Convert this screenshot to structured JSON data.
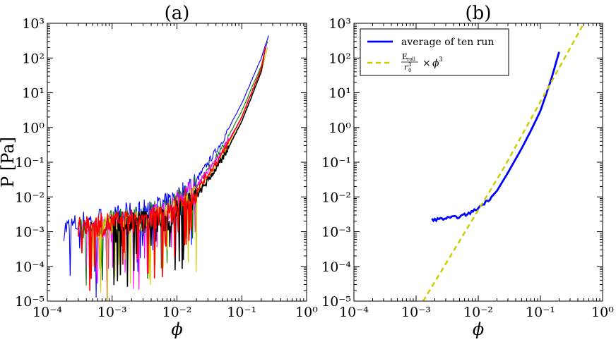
{
  "chart_data": [
    {
      "type": "line",
      "title": "(a)",
      "xlabel": "ϕ",
      "ylabel": "P [Pa]",
      "x_scale": "log",
      "y_scale": "log",
      "xlim": [
        0.0001,
        1
      ],
      "ylim": [
        1e-05,
        1000
      ],
      "x_tick_labels": [
        "10⁻⁴",
        "10⁻³",
        "10⁻²",
        "10⁻¹",
        "10⁰"
      ],
      "y_tick_labels": [
        "10⁻⁵",
        "10⁻⁴",
        "10⁻³",
        "10⁻²",
        "10⁻¹",
        "10⁰",
        "10¹",
        "10²",
        "10³"
      ],
      "grid": false,
      "series": [
        {
          "color": "#0000ff",
          "x": [
            0.00018,
            0.0004,
            0.001,
            0.003,
            0.007,
            0.01,
            0.02,
            0.05,
            0.1,
            0.2,
            0.26
          ],
          "y": [
            0.0012,
            0.002,
            0.0025,
            0.004,
            0.006,
            0.01,
            0.03,
            0.4,
            5,
            100,
            450
          ]
        },
        {
          "color": "#008000",
          "x": [
            0.0003,
            0.001,
            0.003,
            0.007,
            0.01,
            0.02,
            0.05,
            0.1,
            0.2,
            0.25
          ],
          "y": [
            0.001,
            0.002,
            0.0025,
            0.005,
            0.008,
            0.02,
            0.25,
            3,
            60,
            300
          ]
        },
        {
          "color": "#ff00ff",
          "x": [
            0.0004,
            0.001,
            0.003,
            0.007,
            0.01,
            0.02,
            0.05,
            0.1,
            0.2,
            0.24
          ],
          "y": [
            0.001,
            0.0015,
            0.002,
            0.004,
            0.007,
            0.02,
            0.2,
            2,
            50,
            250
          ]
        },
        {
          "color": "#cccc00",
          "x": [
            0.0005,
            0.001,
            0.003,
            0.007,
            0.01,
            0.02,
            0.05,
            0.1,
            0.2,
            0.25
          ],
          "y": [
            0.001,
            0.0015,
            0.002,
            0.003,
            0.005,
            0.012,
            0.15,
            1.5,
            40,
            200
          ]
        },
        {
          "color": "#000000",
          "x": [
            0.001,
            0.003,
            0.007,
            0.01,
            0.02,
            0.05,
            0.1,
            0.2,
            0.23
          ],
          "y": [
            0.0015,
            0.002,
            0.002,
            0.004,
            0.01,
            0.12,
            1.5,
            40,
            200
          ]
        },
        {
          "color": "#ff0000",
          "x": [
            0.0003,
            0.001,
            0.003,
            0.007,
            0.01,
            0.02,
            0.05,
            0.1,
            0.2,
            0.23
          ],
          "y": [
            0.0012,
            0.0018,
            0.0022,
            0.003,
            0.005,
            0.015,
            0.17,
            2,
            50,
            200
          ]
        }
      ]
    },
    {
      "type": "line",
      "title": "(b)",
      "xlabel": "ϕ",
      "ylabel": "",
      "x_scale": "log",
      "y_scale": "log",
      "xlim": [
        0.0001,
        1
      ],
      "ylim": [
        1e-05,
        1000
      ],
      "x_tick_labels": [
        "10⁻⁴",
        "10⁻³",
        "10⁻²",
        "10⁻¹",
        "10⁰"
      ],
      "y_tick_labels": [
        "10⁻⁵",
        "10⁻⁴",
        "10⁻³",
        "10⁻²",
        "10⁻¹",
        "10⁰",
        "10¹",
        "10²",
        "10³"
      ],
      "grid": false,
      "legend": {
        "position": "top-left",
        "entries": [
          {
            "label": "average of ten run",
            "color": "#0000ff",
            "style": "solid"
          },
          {
            "label": "E_roll / r_0^3 × ϕ^3",
            "label_parts": {
              "num": "E",
              "num_sub": "roll",
              "den": "r",
              "den_sub": "0",
              "den_sup": "3",
              "times": "×",
              "phi": "ϕ",
              "phi_sup": "3"
            },
            "color": "#cccc00",
            "style": "dashed"
          }
        ]
      },
      "series": [
        {
          "name": "average of ten run",
          "color": "#0000ff",
          "style": "solid",
          "x": [
            0.0018,
            0.003,
            0.005,
            0.007,
            0.009,
            0.011,
            0.015,
            0.02,
            0.03,
            0.05,
            0.07,
            0.1,
            0.15,
            0.2
          ],
          "y": [
            0.0022,
            0.0024,
            0.0027,
            0.0033,
            0.0042,
            0.0055,
            0.0085,
            0.015,
            0.05,
            0.25,
            0.8,
            3,
            25,
            150
          ]
        },
        {
          "name": "E_roll / r_0^3 × ϕ^3",
          "color": "#cccc00",
          "style": "dashed",
          "x": [
            0.0013,
            0.01,
            0.1,
            0.5
          ],
          "y": [
            1e-05,
            0.004,
            4,
            1000
          ]
        }
      ]
    }
  ]
}
